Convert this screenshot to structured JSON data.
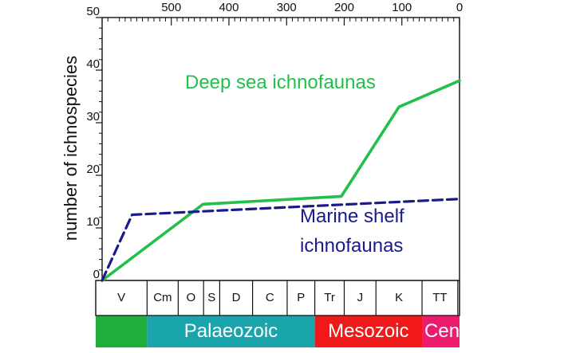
{
  "colors": {
    "deep_sea": "#22c04a",
    "marine_shelf": "#1a1a8c",
    "era_green": "#1fae3a",
    "era_palaeozoic": "#1aa5ad",
    "era_mesozoic": "#f01818",
    "era_cenozoic": "#ee1a6e"
  },
  "chart_data": {
    "type": "line",
    "ylabel": "number of ichnospecies",
    "ylim": [
      0,
      50
    ],
    "yticks": [
      0,
      10,
      20,
      30,
      40,
      50
    ],
    "xlabel": "",
    "xlim": [
      620,
      0
    ],
    "xticks": [
      500,
      400,
      300,
      200,
      100,
      0
    ],
    "x_reversed": true,
    "x_axis_position": "top",
    "grid": false,
    "series": [
      {
        "name": "Deep sea ichnofaunas",
        "style": "solid",
        "color": "#22c04a",
        "x": [
          620,
          445,
          205,
          105,
          0
        ],
        "y": [
          0,
          14.5,
          16,
          33,
          38
        ]
      },
      {
        "name": "Marine shelf\nichnofaunas",
        "style": "dashed",
        "color": "#1a1a8c",
        "x": [
          620,
          568,
          0
        ],
        "y": [
          0,
          12.5,
          15.5
        ]
      }
    ],
    "annotations": [
      {
        "text": "Deep sea ichnofaunas",
        "series": 0
      },
      {
        "lines": [
          "Marine shelf",
          "ichnofaunas"
        ],
        "series": 1
      }
    ],
    "periods": [
      {
        "label": "V",
        "start": 620,
        "end": 542
      },
      {
        "label": "Cm",
        "start": 542,
        "end": 488
      },
      {
        "label": "O",
        "start": 488,
        "end": 444
      },
      {
        "label": "S",
        "start": 444,
        "end": 416
      },
      {
        "label": "D",
        "start": 416,
        "end": 359
      },
      {
        "label": "C",
        "start": 359,
        "end": 299
      },
      {
        "label": "P",
        "start": 299,
        "end": 251
      },
      {
        "label": "Tr",
        "start": 251,
        "end": 200
      },
      {
        "label": "J",
        "start": 200,
        "end": 145
      },
      {
        "label": "K",
        "start": 145,
        "end": 65
      },
      {
        "label": "TT",
        "start": 65,
        "end": 3
      },
      {
        "label": "",
        "start": 3,
        "end": 0
      }
    ],
    "eras": [
      {
        "label": "",
        "start": 620,
        "end": 542,
        "color": "#1fae3a"
      },
      {
        "label": "Palaeozoic",
        "start": 542,
        "end": 251,
        "color": "#1aa5ad"
      },
      {
        "label": "Mesozoic",
        "start": 251,
        "end": 65,
        "color": "#f01818"
      },
      {
        "label": "Cen",
        "start": 65,
        "end": 0,
        "color": "#ee1a6e"
      }
    ]
  }
}
